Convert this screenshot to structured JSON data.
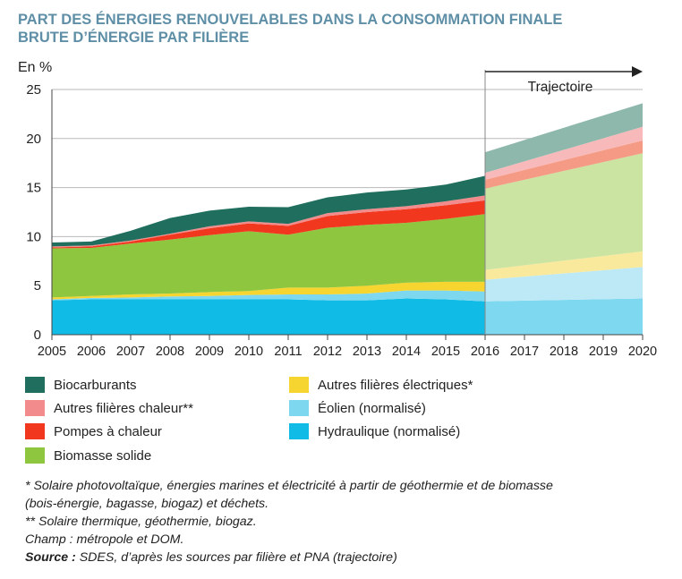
{
  "title_line1": "PART DES ÉNERGIES RENOUVELABLES DANS LA CONSOMMATION FINALE",
  "title_line2": "BRUTE D’ÉNERGIE PAR FILIÈRE",
  "colors": {
    "Hydraulique": "#10bbe6",
    "Eolien": "#7dd7ee",
    "Autres_elec": "#f7d531",
    "Biomasse": "#8fc63f",
    "Pompes": "#f2371f",
    "Autres_chaleur": "#f28b8b",
    "Biocarburants": "#1f6e5e",
    "traj_Hydraulique": "#7ed9f0",
    "traj_Eolien": "#bde9f6",
    "traj_Autres_elec": "#f9e99c",
    "traj_Biomasse": "#cbe4a2",
    "traj_Pompes": "#f59b85",
    "traj_Autres_chaleur": "#f7b9b9",
    "traj_Biocarburants": "#8fb8ad"
  },
  "chart_data": {
    "type": "area",
    "ylabel": "En %",
    "ylim": [
      0,
      25
    ],
    "yticks": [
      0,
      5,
      10,
      15,
      20,
      25
    ],
    "x": [
      "2005",
      "2006",
      "2007",
      "2008",
      "2009",
      "2010",
      "2011",
      "2012",
      "2013",
      "2014",
      "2015",
      "2016",
      "2017",
      "2018",
      "2019",
      "2020"
    ],
    "trajectory_label": "Trajectoire",
    "trajectory_start": "2016",
    "historical": {
      "x": [
        "2005",
        "2006",
        "2007",
        "2008",
        "2009",
        "2010",
        "2011",
        "2012",
        "2013",
        "2014",
        "2015",
        "2016"
      ],
      "series": [
        {
          "name": "Hydraulique (normalisé)",
          "key": "Hydraulique",
          "values": [
            3.5,
            3.6,
            3.6,
            3.6,
            3.6,
            3.6,
            3.6,
            3.5,
            3.5,
            3.7,
            3.6,
            3.4
          ]
        },
        {
          "name": "Éolien (normalisé)",
          "key": "Eolien",
          "values": [
            0.1,
            0.15,
            0.2,
            0.3,
            0.35,
            0.45,
            0.5,
            0.6,
            0.7,
            0.8,
            0.9,
            1.0
          ]
        },
        {
          "name": "Autres filières électriques*",
          "key": "Autres_elec",
          "values": [
            0.2,
            0.2,
            0.3,
            0.3,
            0.4,
            0.4,
            0.7,
            0.7,
            0.8,
            0.8,
            0.9,
            1.0
          ]
        },
        {
          "name": "Biomasse solide",
          "key": "Biomasse",
          "values": [
            5.0,
            4.9,
            5.2,
            5.5,
            5.8,
            6.1,
            5.4,
            6.1,
            6.2,
            6.1,
            6.4,
            6.9
          ]
        },
        {
          "name": "Pompes à chaleur",
          "key": "Pompes",
          "values": [
            0.1,
            0.15,
            0.2,
            0.5,
            0.7,
            0.8,
            0.9,
            1.2,
            1.3,
            1.4,
            1.4,
            1.4
          ]
        },
        {
          "name": "Autres filières chaleur**",
          "key": "Autres_chaleur",
          "values": [
            0.1,
            0.1,
            0.1,
            0.1,
            0.2,
            0.2,
            0.2,
            0.3,
            0.3,
            0.3,
            0.4,
            0.5
          ]
        },
        {
          "name": "Biocarburants",
          "key": "Biocarburants",
          "values": [
            0.4,
            0.4,
            1.0,
            1.6,
            1.6,
            1.5,
            1.7,
            1.6,
            1.7,
            1.7,
            1.7,
            2.0
          ]
        }
      ]
    },
    "trajectory": {
      "x": [
        "2016",
        "2020"
      ],
      "series": [
        {
          "key": "Hydraulique",
          "values": [
            3.4,
            3.7
          ]
        },
        {
          "key": "Eolien",
          "values": [
            2.2,
            3.2
          ]
        },
        {
          "key": "Autres_elec",
          "values": [
            1.0,
            1.6
          ]
        },
        {
          "key": "Biomasse",
          "values": [
            8.3,
            10.0
          ]
        },
        {
          "key": "Pompes",
          "values": [
            0.9,
            1.3
          ]
        },
        {
          "key": "Autres_chaleur",
          "values": [
            0.7,
            1.4
          ]
        },
        {
          "key": "Biocarburants",
          "values": [
            2.1,
            2.4
          ]
        }
      ]
    }
  },
  "legend": [
    {
      "label": "Biocarburants",
      "key": "Biocarburants",
      "col": 0,
      "row": 0
    },
    {
      "label": "Autres filières chaleur**",
      "key": "Autres_chaleur",
      "col": 0,
      "row": 1
    },
    {
      "label": "Pompes à chaleur",
      "key": "Pompes",
      "col": 0,
      "row": 2
    },
    {
      "label": "Biomasse solide",
      "key": "Biomasse",
      "col": 0,
      "row": 3
    },
    {
      "label": "Autres filières électriques*",
      "key": "Autres_elec",
      "col": 1,
      "row": 0
    },
    {
      "label": "Éolien (normalisé)",
      "key": "Eolien",
      "col": 1,
      "row": 1
    },
    {
      "label": "Hydraulique (normalisé)",
      "key": "Hydraulique",
      "col": 1,
      "row": 2
    }
  ],
  "notes": {
    "note1_line1": "* Solaire photovoltaïque, énergies marines et électricité à partir de géothermie et de biomasse",
    "note1_line2": "(bois-énergie, bagasse, biogaz) et déchets.",
    "note2": "** Solaire thermique, géothermie, biogaz.",
    "champ": "Champ : métropole et DOM.",
    "source_label": "Source :",
    "source_text": " SDES, d’après les sources par filière et PNA (trajectoire)"
  }
}
